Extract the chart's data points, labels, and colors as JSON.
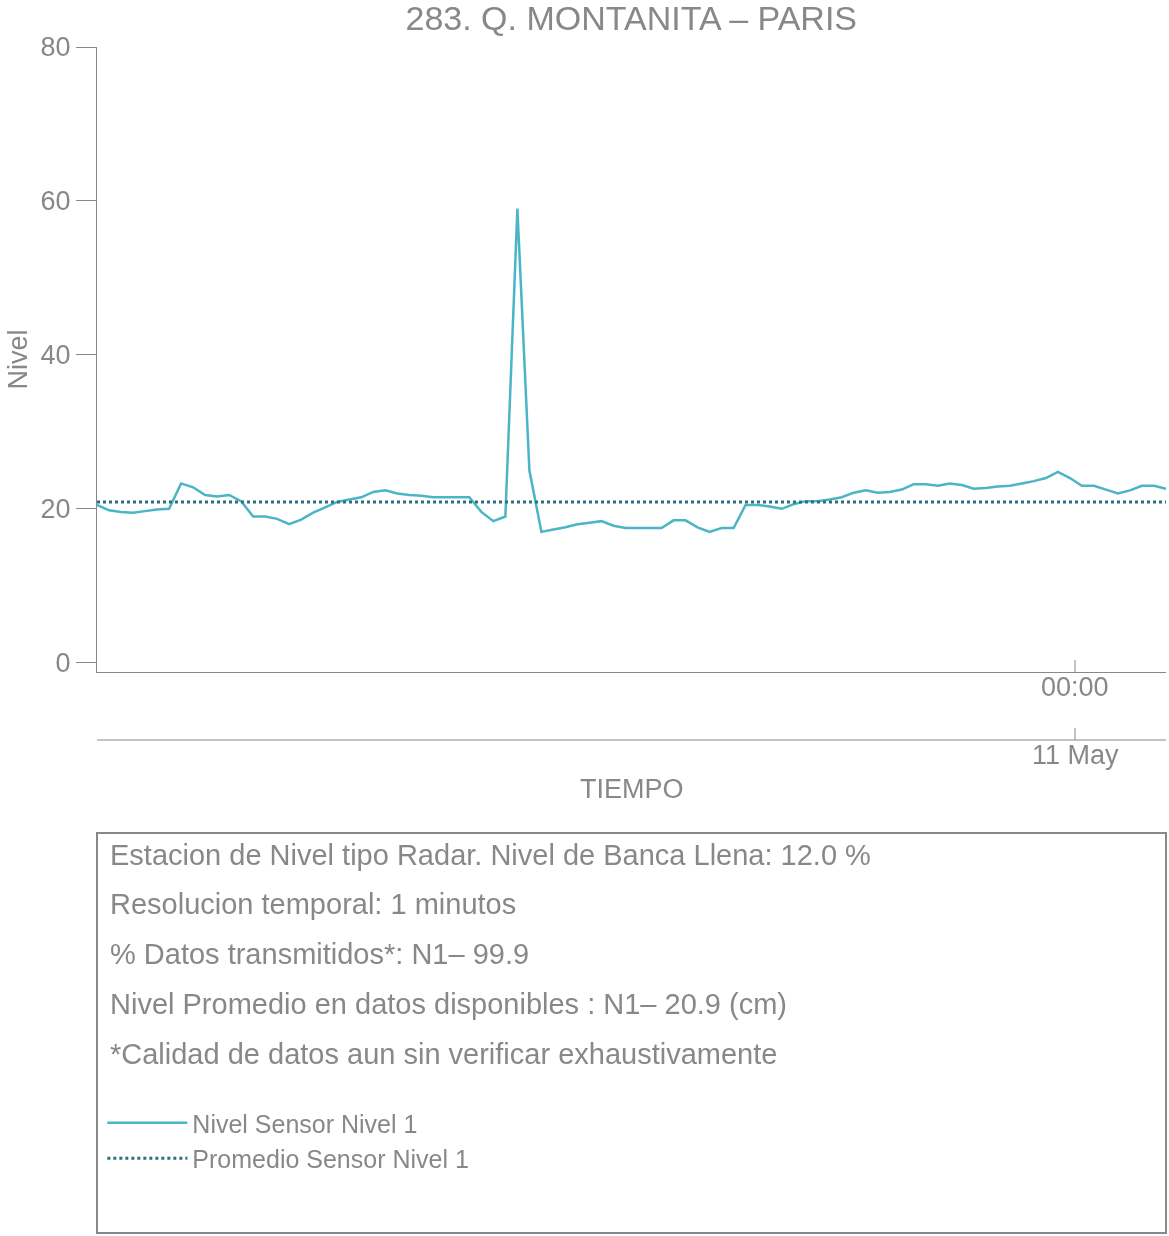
{
  "chart_data": {
    "type": "line",
    "title": "283. Q. MONTANITA – PARIS",
    "xlabel": "TIEMPO",
    "ylabel": "Nivel",
    "categories": [
      null,
      null,
      null,
      null,
      null,
      null,
      null,
      null,
      null,
      null,
      null,
      null,
      null,
      null,
      null,
      null,
      null,
      null,
      null,
      null,
      null,
      null,
      null,
      null,
      null,
      null,
      null,
      null,
      null,
      null,
      null,
      null,
      null,
      null,
      null,
      null,
      null,
      null,
      null,
      null,
      null,
      null,
      null,
      null,
      null,
      null,
      null,
      null,
      null,
      null,
      null,
      null,
      null,
      null,
      null,
      null,
      null,
      null,
      null,
      null,
      null,
      null,
      null,
      null,
      null,
      null,
      null,
      null,
      null,
      null,
      null,
      null,
      null,
      null,
      null,
      null,
      null,
      null,
      null,
      null,
      null,
      null,
      null,
      null,
      null,
      null,
      null,
      null,
      null,
      null
    ],
    "series": [
      {
        "name": "Nivel Sensor Nivel 1",
        "color": "#4ab5c4",
        "values": [
          20.5,
          19.8,
          19.6,
          19.5,
          19.7,
          19.9,
          20,
          23.3,
          22.8,
          21.8,
          21.6,
          21.8,
          21,
          19,
          19,
          18.7,
          18,
          18.6,
          19.5,
          20.2,
          20.9,
          21.2,
          21.5,
          22.2,
          22.4,
          22,
          21.8,
          21.7,
          21.5,
          21.5,
          21.5,
          21.5,
          19.6,
          18.4,
          19,
          59,
          25,
          17,
          17.3,
          17.6,
          18,
          18.2,
          18.4,
          17.8,
          17.5,
          17.5,
          17.5,
          17.5,
          18.5,
          18.5,
          17.6,
          17,
          17.5,
          17.5,
          20.5,
          20.5,
          20.3,
          20,
          20.6,
          21,
          21,
          21.2,
          21.5,
          22.1,
          22.4,
          22.1,
          22.2,
          22.5,
          23.2,
          23.2,
          23,
          23.3,
          23.1,
          22.6,
          22.7,
          22.9,
          23,
          23.3,
          23.6,
          24,
          24.8,
          24,
          23,
          23,
          22.5,
          22,
          22.4,
          23,
          23,
          22.6
        ]
      }
    ],
    "ref_lines": [
      {
        "axis": "y",
        "value": 20.9,
        "label": "Promedio Sensor Nivel 1",
        "color": "#2b7080",
        "line_style": "dotted"
      }
    ],
    "ylim": [
      -1.2,
      80
    ],
    "yticks": [
      0,
      20,
      40,
      60,
      80
    ],
    "annotations": [
      "00:00",
      "11 May",
      "Estacion de Nivel tipo Radar. Nivel de Banca Llena: 12.0 %",
      "Resolucion temporal: 1 minutos",
      "% Datos transmitidos*: N1– 99.9",
      "Nivel Promedio en datos disponibles : N1– 20.9 (cm)",
      "*Calidad de datos aun sin verificar exhaustivamente"
    ],
    "legend": "bottom",
    "line_style": "solid",
    "marker": "none"
  }
}
